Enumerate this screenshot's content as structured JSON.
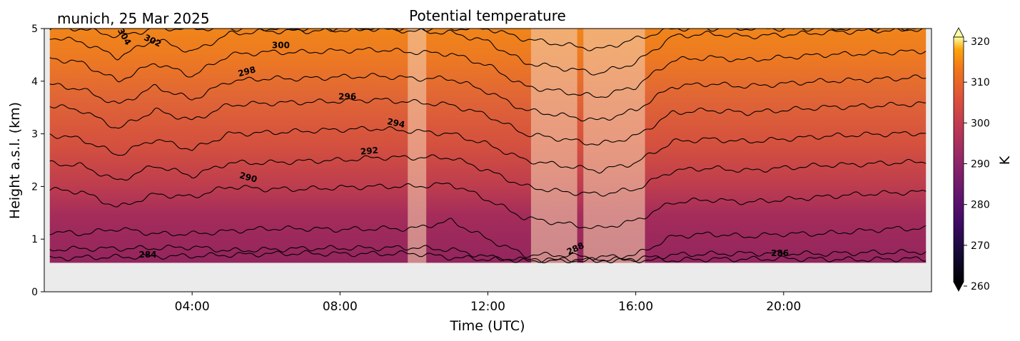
{
  "chart_data": {
    "type": "heatmap",
    "title": "Potential temperature",
    "subtitle": "munich, 25 Mar 2025",
    "xlabel": "Time (UTC)",
    "ylabel": "Height a.s.l. (km)",
    "xlim": [
      "00:00",
      "24:00"
    ],
    "ylim": [
      0,
      5
    ],
    "x_ticks": [
      "04:00",
      "08:00",
      "12:00",
      "16:00",
      "20:00"
    ],
    "y_ticks": [
      "0",
      "1",
      "2",
      "3",
      "4",
      "5"
    ],
    "colorbar": {
      "label": "K",
      "range": [
        260,
        320
      ],
      "ticks": [
        "260",
        "270",
        "280",
        "290",
        "300",
        "310",
        "320"
      ],
      "extend": "both",
      "colormap": "inferno"
    },
    "data_bottom_km": 0.55,
    "no_data_color": "#ebebeb",
    "masked_periods": [
      {
        "start": "09:50",
        "end": "10:20"
      },
      {
        "start": "13:10",
        "end": "14:25"
      },
      {
        "start": "14:35",
        "end": "16:15"
      }
    ],
    "isentropes": [
      {
        "theta": 284,
        "label": "284",
        "heights_km": [
          0.63,
          0.65,
          0.66,
          0.67,
          0.68,
          0.7,
          0.72,
          0.73,
          0.72,
          0.72,
          0.73,
          0.65,
          0.62,
          0.6,
          0.6,
          0.6,
          0.6,
          0.6,
          0.62,
          0.62,
          0.63,
          0.62,
          0.61,
          0.62,
          0.63
        ]
      },
      {
        "theta": 286,
        "label": "286",
        "heights_km": [
          0.8,
          0.82,
          0.82,
          0.83,
          0.85,
          0.78,
          0.8,
          0.82,
          0.83,
          0.83,
          0.84,
          0.8,
          0.66,
          0.6,
          0.6,
          0.6,
          0.62,
          0.7,
          0.72,
          0.73,
          0.73,
          0.72,
          0.74,
          0.75,
          0.76
        ]
      },
      {
        "theta": 288,
        "label": "288",
        "heights_km": [
          1.15,
          1.1,
          1.2,
          1.1,
          1.1,
          1.15,
          1.2,
          1.2,
          1.18,
          1.2,
          1.2,
          1.35,
          1.0,
          0.7,
          0.7,
          0.65,
          0.7,
          1.05,
          1.1,
          1.05,
          1.1,
          1.1,
          1.15,
          1.2,
          1.2
        ]
      },
      {
        "theta": 290,
        "label": "290",
        "heights_km": [
          1.95,
          1.9,
          1.6,
          1.85,
          1.8,
          2.0,
          1.95,
          1.95,
          1.98,
          2.0,
          2.0,
          2.05,
          1.75,
          1.4,
          1.3,
          1.2,
          1.35,
          1.7,
          1.75,
          1.7,
          1.75,
          1.8,
          1.85,
          1.88,
          1.9
        ]
      },
      {
        "theta": 292,
        "label": "292",
        "heights_km": [
          2.45,
          2.4,
          2.1,
          2.4,
          2.2,
          2.45,
          2.45,
          2.48,
          2.5,
          2.55,
          2.55,
          2.55,
          2.3,
          2.0,
          1.9,
          1.85,
          1.95,
          2.3,
          2.35,
          2.3,
          2.35,
          2.4,
          2.42,
          2.45,
          2.48
        ]
      },
      {
        "theta": 294,
        "label": "294",
        "heights_km": [
          3.0,
          2.9,
          2.6,
          2.9,
          2.7,
          3.0,
          3.02,
          3.05,
          3.08,
          3.1,
          3.05,
          3.0,
          2.8,
          2.5,
          2.4,
          2.3,
          2.45,
          2.85,
          2.9,
          2.85,
          2.9,
          2.95,
          2.98,
          3.0,
          3.02
        ]
      },
      {
        "theta": 296,
        "label": "296",
        "heights_km": [
          3.55,
          3.45,
          3.1,
          3.45,
          3.25,
          3.55,
          3.58,
          3.6,
          3.62,
          3.65,
          3.6,
          3.55,
          3.35,
          3.0,
          2.9,
          2.8,
          2.95,
          3.4,
          3.45,
          3.4,
          3.45,
          3.5,
          3.52,
          3.55,
          3.58
        ]
      },
      {
        "theta": 298,
        "label": "298",
        "heights_km": [
          3.95,
          3.85,
          3.55,
          3.9,
          3.65,
          4.0,
          4.05,
          4.05,
          4.08,
          4.1,
          4.05,
          4.05,
          3.8,
          3.45,
          3.35,
          3.25,
          3.45,
          3.9,
          3.95,
          3.9,
          3.95,
          4.0,
          4.02,
          4.05,
          4.08
        ]
      },
      {
        "theta": 300,
        "label": "300",
        "heights_km": [
          4.45,
          4.35,
          4.0,
          4.35,
          4.1,
          4.5,
          4.55,
          4.55,
          4.58,
          4.6,
          4.55,
          4.52,
          4.3,
          3.9,
          3.8,
          3.7,
          3.9,
          4.4,
          4.45,
          4.4,
          4.45,
          4.5,
          4.52,
          4.55,
          4.58
        ]
      },
      {
        "theta": 302,
        "label": "302",
        "heights_km": [
          4.85,
          4.75,
          4.45,
          4.8,
          4.55,
          4.9,
          4.95,
          4.95,
          4.97,
          5.0,
          4.95,
          4.92,
          4.75,
          4.35,
          4.25,
          4.15,
          4.35,
          4.85,
          4.9,
          4.85,
          4.88,
          4.92,
          4.95,
          4.97,
          5.0
        ]
      },
      {
        "theta": 304,
        "label": "304",
        "heights_km": [
          5.0,
          5.0,
          4.85,
          5.0,
          5.0,
          5.0,
          5.0,
          5.0,
          5.0,
          5.0,
          5.0,
          5.0,
          5.0,
          4.8,
          4.7,
          4.6,
          4.8,
          5.0,
          5.0,
          5.0,
          5.0,
          5.0,
          5.0,
          5.0,
          5.0
        ]
      }
    ],
    "contour_labels": [
      {
        "text": "284",
        "time_h": 2.8,
        "height_km": 0.65,
        "angle": 0
      },
      {
        "text": "286",
        "time_h": 19.9,
        "height_km": 0.68,
        "angle": 0
      },
      {
        "text": "288",
        "time_h": 14.4,
        "height_km": 0.77,
        "angle": -25
      },
      {
        "text": "290",
        "time_h": 5.5,
        "height_km": 2.12,
        "angle": 15
      },
      {
        "text": "292",
        "time_h": 8.8,
        "height_km": 2.62,
        "angle": -5
      },
      {
        "text": "294",
        "time_h": 9.5,
        "height_km": 3.15,
        "angle": 12
      },
      {
        "text": "296",
        "time_h": 8.2,
        "height_km": 3.65,
        "angle": 0
      },
      {
        "text": "298",
        "time_h": 5.5,
        "height_km": 4.13,
        "angle": -15
      },
      {
        "text": "300",
        "time_h": 6.4,
        "height_km": 4.63,
        "angle": 0
      },
      {
        "text": "302",
        "time_h": 2.9,
        "height_km": 4.72,
        "angle": 25
      },
      {
        "text": "304",
        "time_h": 2.1,
        "height_km": 4.82,
        "angle": 60
      }
    ]
  }
}
